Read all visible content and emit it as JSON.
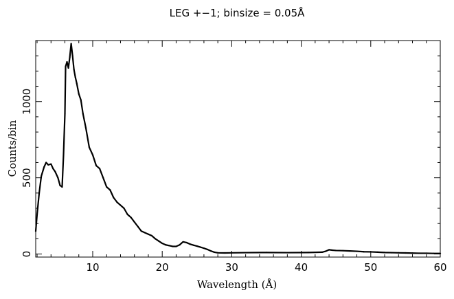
{
  "chart_data": {
    "type": "line",
    "title": "LEG +−1; binsize = 0.05Å",
    "xlabel": "Wavelength (Å)",
    "ylabel": "Counts/bin",
    "xlim": [
      1.8,
      60
    ],
    "ylim": [
      -20,
      1400
    ],
    "x_ticks": [
      10,
      20,
      30,
      40,
      50,
      60
    ],
    "y_ticks": [
      0,
      500,
      1000
    ],
    "grid": false,
    "legend": "none",
    "series": [
      {
        "color": "#000000",
        "x": [
          1.8,
          2.0,
          2.3,
          2.6,
          3.0,
          3.3,
          3.6,
          4.0,
          4.3,
          4.6,
          5.0,
          5.3,
          5.6,
          5.8,
          6.0,
          6.1,
          6.3,
          6.5,
          6.7,
          6.9,
          7.1,
          7.3,
          7.5,
          7.7,
          8.0,
          8.3,
          8.6,
          9.0,
          9.5,
          10.0,
          10.5,
          11.0,
          11.5,
          12.0,
          12.5,
          13.0,
          13.5,
          14.0,
          14.5,
          15.0,
          15.5,
          16.0,
          16.5,
          17.0,
          17.5,
          18.0,
          18.5,
          19.0,
          19.5,
          20.0,
          20.5,
          21.0,
          21.5,
          22.0,
          22.5,
          23.0,
          23.5,
          24.0,
          24.5,
          25.0,
          25.5,
          26.0,
          26.5,
          27.0,
          27.5,
          28.0,
          29.0,
          30.0,
          32.0,
          35.0,
          38.0,
          41.0,
          43.0,
          43.5,
          44.0,
          44.5,
          45.0,
          46.0,
          47.0,
          48.0,
          49.0,
          50.0,
          51.0,
          52.0,
          53.0,
          54.0,
          55.0,
          56.0,
          57.0,
          58.0,
          59.0,
          60.0
        ],
        "y": [
          150,
          260,
          400,
          510,
          570,
          600,
          585,
          590,
          560,
          540,
          500,
          450,
          440,
          650,
          920,
          1230,
          1260,
          1220,
          1290,
          1380,
          1300,
          1210,
          1160,
          1120,
          1050,
          1010,
          920,
          830,
          700,
          650,
          580,
          560,
          500,
          440,
          420,
          370,
          340,
          320,
          300,
          260,
          240,
          210,
          180,
          150,
          140,
          130,
          120,
          100,
          85,
          70,
          60,
          55,
          50,
          50,
          60,
          80,
          75,
          65,
          58,
          52,
          45,
          38,
          30,
          20,
          12,
          8,
          7,
          8,
          9,
          10,
          9,
          10,
          12,
          18,
          28,
          25,
          23,
          22,
          20,
          18,
          15,
          14,
          12,
          10,
          9,
          8,
          7,
          6,
          5,
          5,
          4,
          4
        ]
      }
    ]
  }
}
